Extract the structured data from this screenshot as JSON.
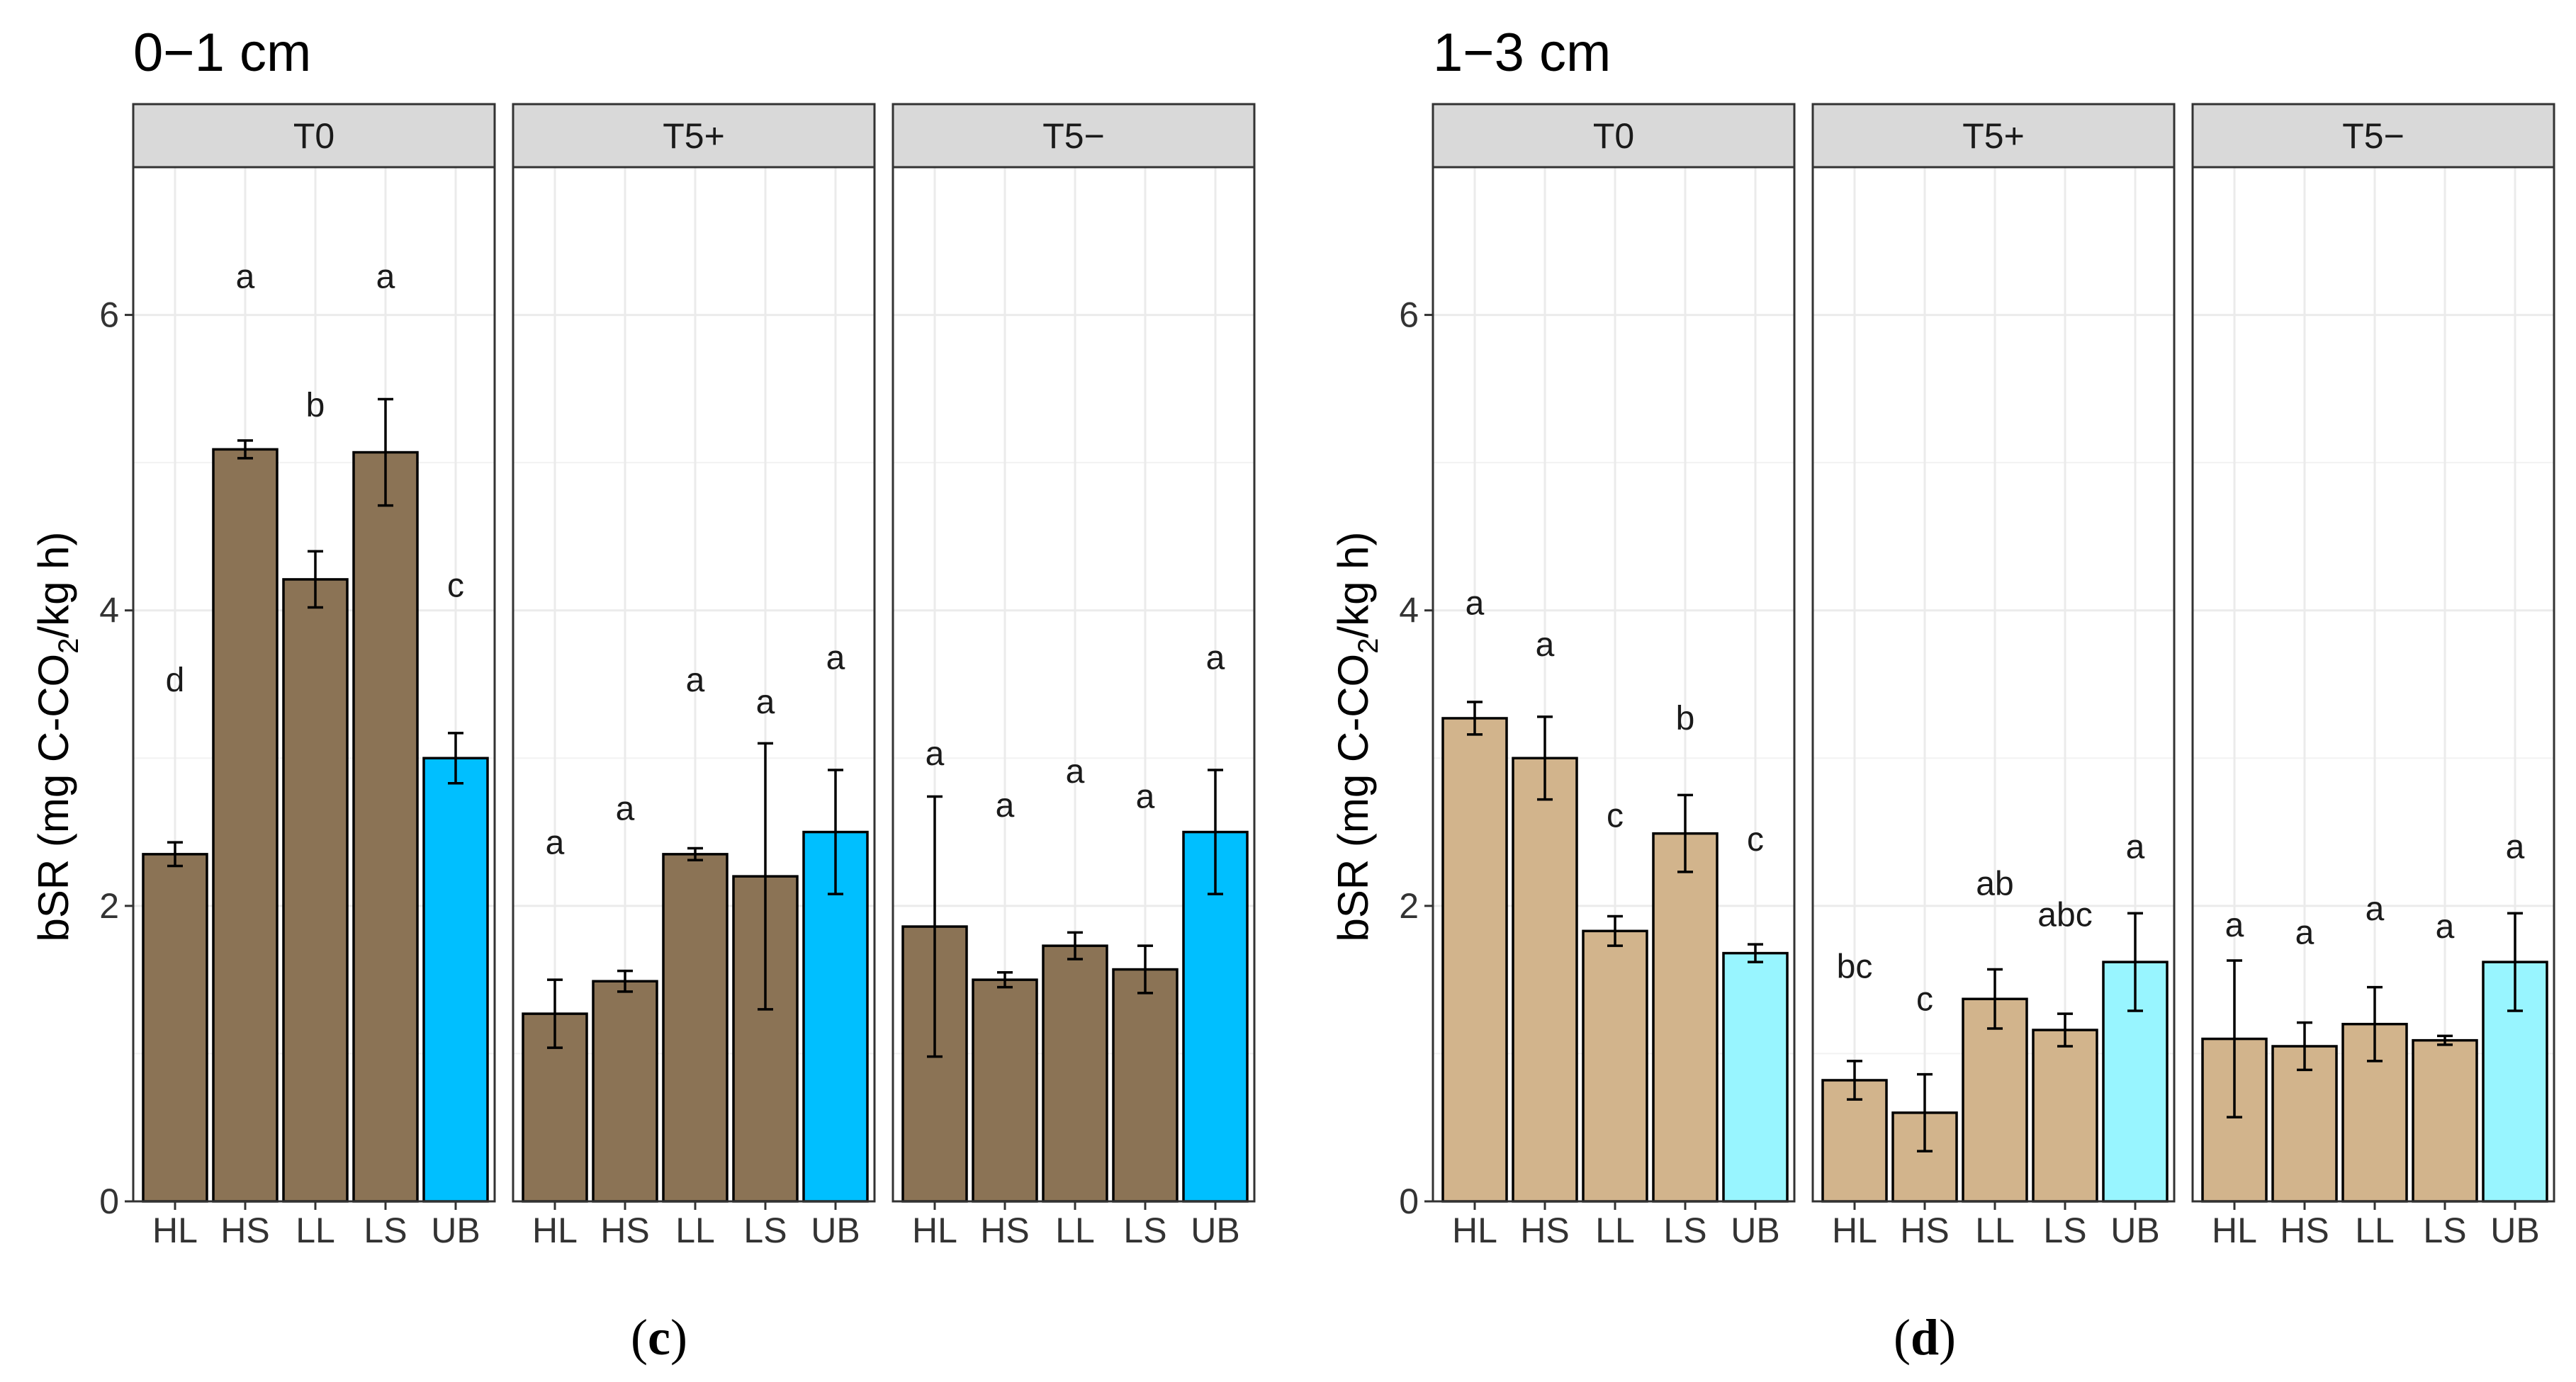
{
  "chart_data": [
    {
      "type": "bar",
      "title": "0−1 cm",
      "caption_letter": "c",
      "ylabel": {
        "pre": "bSR (mg C-CO",
        "sub": "2",
        "post": "/kg h)"
      },
      "ylim": [
        0,
        7
      ],
      "yticks": [
        0,
        2,
        4,
        6
      ],
      "categories": [
        "HL",
        "HS",
        "LL",
        "LS",
        "UB"
      ],
      "bar_fill": "#8B7355",
      "highlight_fill": "#00BFFF",
      "highlight_category": "UB",
      "facets": [
        {
          "label": "T0",
          "values": [
            2.35,
            5.09,
            4.21,
            5.07,
            3.0
          ],
          "errors": [
            0.08,
            0.06,
            0.19,
            0.36,
            0.17
          ],
          "letters": [
            "d",
            "a",
            "b",
            "a",
            "c"
          ],
          "letter_y": [
            3.52,
            6.25,
            5.38,
            6.25,
            4.16
          ]
        },
        {
          "label": "T5+",
          "values": [
            1.27,
            1.49,
            2.35,
            2.2,
            2.5
          ],
          "errors": [
            0.23,
            0.07,
            0.04,
            0.9,
            0.42
          ],
          "letters": [
            "a",
            "a",
            "a",
            "a",
            "a"
          ],
          "letter_y": [
            2.42,
            2.65,
            3.52,
            3.37,
            3.67
          ]
        },
        {
          "label": "T5−",
          "values": [
            1.86,
            1.5,
            1.73,
            1.57,
            2.5
          ],
          "errors": [
            0.88,
            0.05,
            0.09,
            0.16,
            0.42
          ],
          "letters": [
            "a",
            "a",
            "a",
            "a",
            "a"
          ],
          "letter_y": [
            3.02,
            2.67,
            2.9,
            2.73,
            3.67
          ]
        }
      ]
    },
    {
      "type": "bar",
      "title": "1−3 cm",
      "caption_letter": "d",
      "ylabel": {
        "pre": "bSR (mg C-CO",
        "sub": "2",
        "post": "/kg h)"
      },
      "ylim": [
        0,
        7
      ],
      "yticks": [
        0,
        2,
        4,
        6
      ],
      "categories": [
        "HL",
        "HS",
        "LL",
        "LS",
        "UB"
      ],
      "bar_fill": "#D2B48C",
      "highlight_fill": "#98F5FF",
      "highlight_category": "UB",
      "facets": [
        {
          "label": "T0",
          "values": [
            3.27,
            3.0,
            1.83,
            2.49,
            1.68
          ],
          "errors": [
            0.11,
            0.28,
            0.1,
            0.26,
            0.06
          ],
          "letters": [
            "a",
            "a",
            "c",
            "b",
            "c"
          ],
          "letter_y": [
            4.04,
            3.76,
            2.6,
            3.26,
            2.44
          ]
        },
        {
          "label": "T5+",
          "values": [
            0.82,
            0.6,
            1.37,
            1.16,
            1.62
          ],
          "errors": [
            0.13,
            0.26,
            0.2,
            0.11,
            0.33
          ],
          "letters": [
            "bc",
            "c",
            "ab",
            "abc",
            "a"
          ],
          "letter_y": [
            1.58,
            1.36,
            2.14,
            1.93,
            2.39
          ]
        },
        {
          "label": "T5−",
          "values": [
            1.1,
            1.05,
            1.2,
            1.09,
            1.62
          ],
          "errors": [
            0.53,
            0.16,
            0.25,
            0.03,
            0.33
          ],
          "letters": [
            "a",
            "a",
            "a",
            "a",
            "a"
          ],
          "letter_y": [
            1.86,
            1.81,
            1.97,
            1.85,
            2.39
          ]
        }
      ]
    }
  ]
}
